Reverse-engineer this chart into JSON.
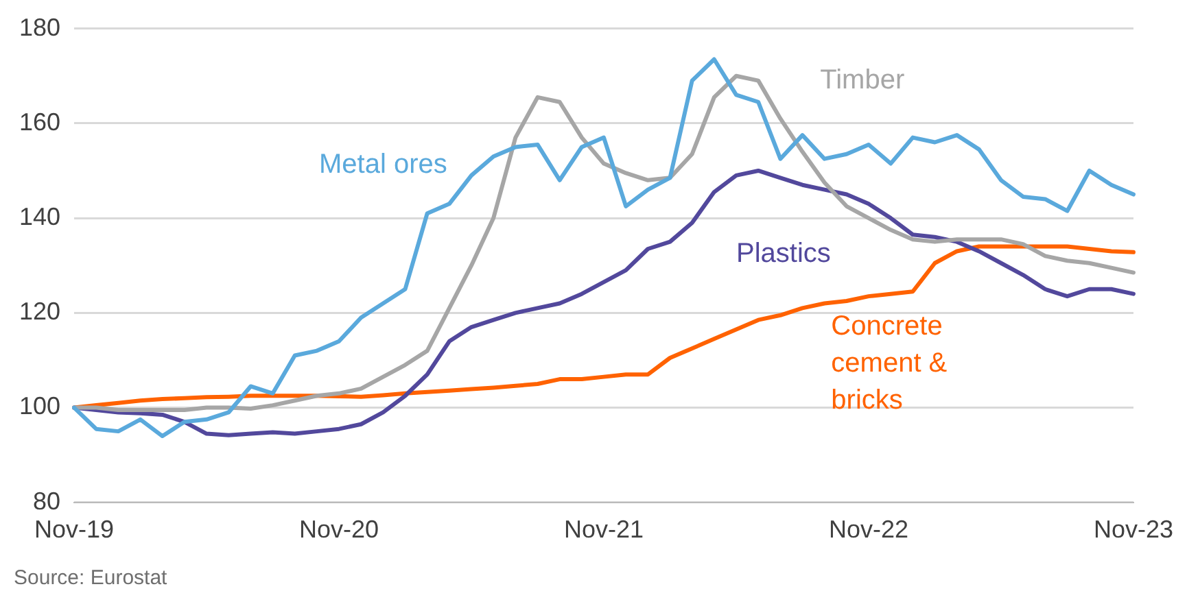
{
  "chart_data": {
    "type": "line",
    "categories": [
      "Nov-19",
      null,
      null,
      null,
      null,
      null,
      null,
      null,
      null,
      null,
      null,
      null,
      "Nov-20",
      null,
      null,
      null,
      null,
      null,
      null,
      null,
      null,
      null,
      null,
      null,
      "Nov-21",
      null,
      null,
      null,
      null,
      null,
      null,
      null,
      null,
      null,
      null,
      null,
      "Nov-22",
      null,
      null,
      null,
      null,
      null,
      null,
      null,
      null,
      null,
      null,
      null,
      "Nov-23"
    ],
    "series": [
      {
        "name": "Metal ores",
        "color": "#5aa9dc",
        "values": [
          100,
          95.5,
          95,
          97.5,
          94,
          97,
          97.5,
          99,
          104.5,
          103,
          111,
          112,
          114,
          119,
          122,
          125,
          141,
          143,
          149,
          153,
          155,
          155.5,
          148,
          155,
          157,
          142.5,
          146,
          148.5,
          169,
          173.5,
          166,
          164.5,
          152.5,
          157.5,
          152.5,
          153.5,
          155.5,
          151.5,
          157,
          156,
          157.5,
          154.5,
          148,
          144.5,
          144,
          141.5,
          150,
          147,
          145
        ]
      },
      {
        "name": "Timber",
        "color": "#a6a6a6",
        "values": [
          100,
          100,
          99.5,
          99.5,
          99.5,
          99.5,
          100,
          100,
          99.8,
          100.5,
          101.5,
          102.5,
          103,
          104,
          106.5,
          109,
          112,
          121,
          130,
          140,
          157,
          165.5,
          164.5,
          157,
          151.5,
          149.5,
          148,
          148.5,
          153.5,
          165.5,
          170,
          169,
          161,
          154,
          147.5,
          142.5,
          140,
          137.5,
          135.5,
          135,
          135.5,
          135.5,
          135.5,
          134.5,
          132,
          131,
          130.5,
          129.5,
          128.5
        ]
      },
      {
        "name": "Plastics",
        "color": "#52489c",
        "values": [
          100,
          99.5,
          99,
          98.8,
          98.5,
          97,
          94.5,
          94.2,
          94.5,
          94.8,
          94.5,
          95,
          95.5,
          96.5,
          99,
          102.5,
          107,
          114,
          117,
          118.5,
          120,
          121,
          122,
          124,
          126.5,
          129,
          133.5,
          135,
          139,
          145.5,
          149,
          150,
          148.5,
          147,
          146,
          145,
          143,
          140,
          136.5,
          136,
          135,
          133,
          130.5,
          128,
          125,
          123.5,
          125,
          125,
          124
        ]
      },
      {
        "name": "Concrete cement & bricks",
        "color": "#ff6200",
        "values": [
          100,
          100.5,
          101,
          101.5,
          101.8,
          102,
          102.2,
          102.3,
          102.5,
          102.5,
          102.5,
          102.5,
          102.4,
          102.3,
          102.6,
          103,
          103.3,
          103.6,
          103.9,
          104.2,
          104.6,
          105,
          106,
          106,
          106.5,
          107,
          107,
          110.5,
          112.5,
          114.5,
          116.5,
          118.5,
          119.5,
          121,
          122,
          122.5,
          123.5,
          124,
          124.5,
          130.5,
          133,
          134,
          134,
          134,
          134,
          134,
          133.5,
          133,
          132.8
        ]
      }
    ],
    "ylim": [
      80,
      180
    ],
    "yticks": [
      80,
      100,
      120,
      140,
      160,
      180
    ],
    "grid": "y",
    "legend": false,
    "marker": "none",
    "line_style": "solid",
    "annotations": [
      "Source: Eurostat"
    ]
  }
}
